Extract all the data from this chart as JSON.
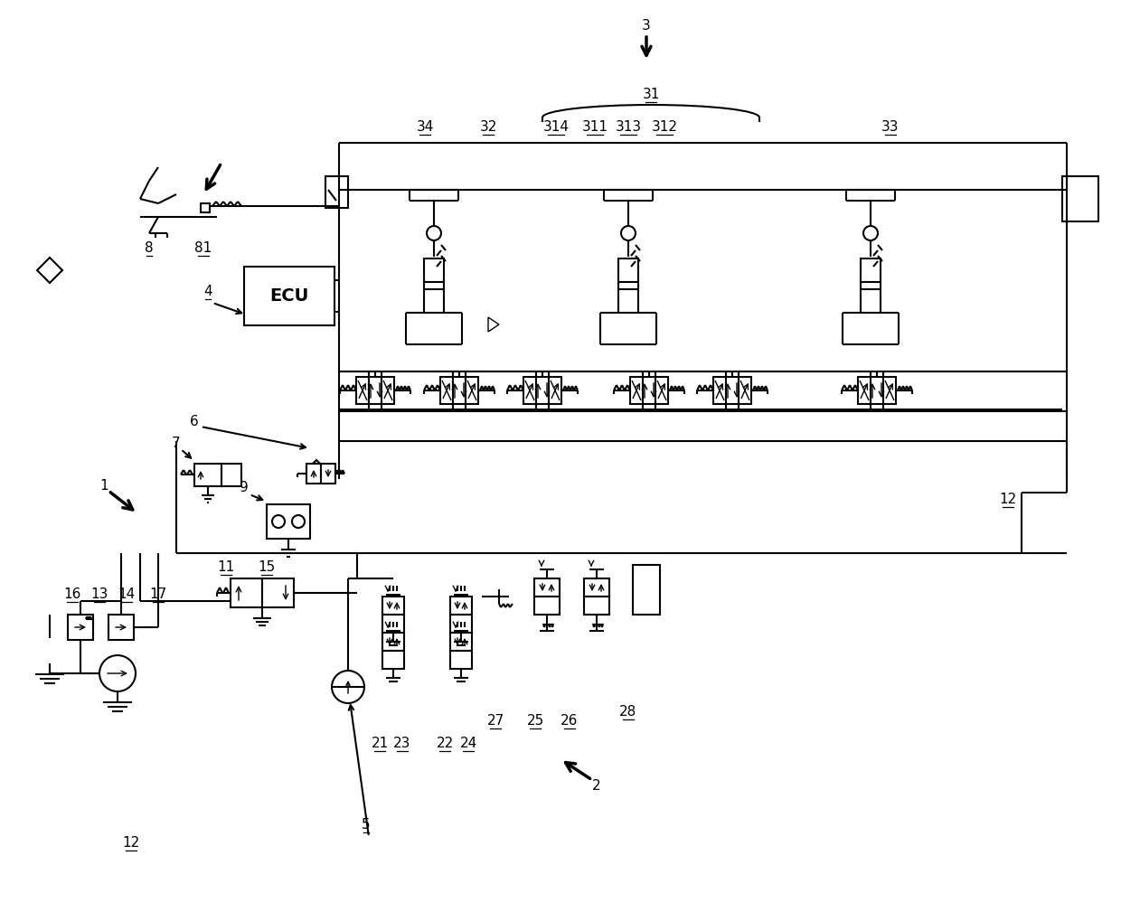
{
  "bg_color": "#ffffff",
  "line_color": "#000000",
  "lw": 1.5,
  "lw_thin": 1.0
}
